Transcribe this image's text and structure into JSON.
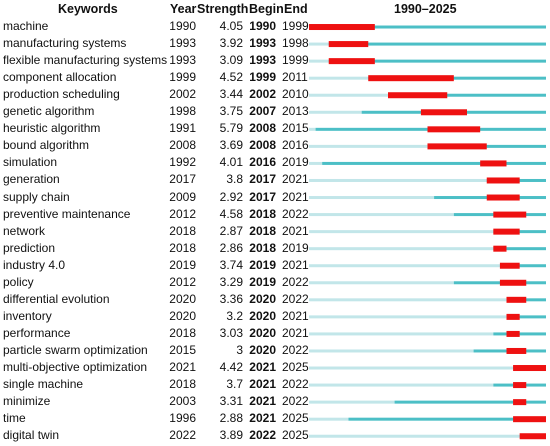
{
  "headers": {
    "keywords": "Keywords",
    "year": "Year",
    "strength": "Strength",
    "begin": "Begin",
    "end": "End",
    "range": "1990–2025"
  },
  "rows": [
    {
      "keyword": "machine",
      "year": "1990",
      "strength": "4.05",
      "begin": "1990",
      "end": "1999"
    },
    {
      "keyword": "manufacturing systems",
      "year": "1993",
      "strength": "3.92",
      "begin": "1993",
      "end": "1998"
    },
    {
      "keyword": "flexible manufacturing systems",
      "year": "1993",
      "strength": "3.09",
      "begin": "1993",
      "end": "1999"
    },
    {
      "keyword": "component allocation",
      "year": "1999",
      "strength": "4.52",
      "begin": "1999",
      "end": "2011"
    },
    {
      "keyword": "production scheduling",
      "year": "2002",
      "strength": "3.44",
      "begin": "2002",
      "end": "2010"
    },
    {
      "keyword": "genetic algorithm",
      "year": "1998",
      "strength": "3.75",
      "begin": "2007",
      "end": "2013"
    },
    {
      "keyword": "heuristic algorithm",
      "year": "1991",
      "strength": "5.79",
      "begin": "2008",
      "end": "2015"
    },
    {
      "keyword": "bound algorithm",
      "year": "2008",
      "strength": "3.69",
      "begin": "2008",
      "end": "2016"
    },
    {
      "keyword": "simulation",
      "year": "1992",
      "strength": "4.01",
      "begin": "2016",
      "end": "2019"
    },
    {
      "keyword": "generation",
      "year": "2017",
      "strength": "3.8",
      "begin": "2017",
      "end": "2021"
    },
    {
      "keyword": "supply chain",
      "year": "2009",
      "strength": "2.92",
      "begin": "2017",
      "end": "2021"
    },
    {
      "keyword": "preventive maintenance",
      "year": "2012",
      "strength": "4.58",
      "begin": "2018",
      "end": "2022"
    },
    {
      "keyword": "network",
      "year": "2018",
      "strength": "2.87",
      "begin": "2018",
      "end": "2021"
    },
    {
      "keyword": "prediction",
      "year": "2018",
      "strength": "2.86",
      "begin": "2018",
      "end": "2019"
    },
    {
      "keyword": "industry 4.0",
      "year": "2019",
      "strength": "3.74",
      "begin": "2019",
      "end": "2021"
    },
    {
      "keyword": "policy",
      "year": "2012",
      "strength": "3.29",
      "begin": "2019",
      "end": "2022"
    },
    {
      "keyword": "differential evolution",
      "year": "2020",
      "strength": "3.36",
      "begin": "2020",
      "end": "2022"
    },
    {
      "keyword": "inventory",
      "year": "2020",
      "strength": "3.2",
      "begin": "2020",
      "end": "2021"
    },
    {
      "keyword": "performance",
      "year": "2018",
      "strength": "3.03",
      "begin": "2020",
      "end": "2021"
    },
    {
      "keyword": "particle swarm optimization",
      "year": "2015",
      "strength": "3",
      "begin": "2020",
      "end": "2022"
    },
    {
      "keyword": "multi-objective optimization",
      "year": "2021",
      "strength": "4.42",
      "begin": "2021",
      "end": "2025"
    },
    {
      "keyword": "single machine",
      "year": "2018",
      "strength": "3.7",
      "begin": "2021",
      "end": "2022"
    },
    {
      "keyword": "minimize",
      "year": "2003",
      "strength": "3.31",
      "begin": "2021",
      "end": "2022"
    },
    {
      "keyword": "time",
      "year": "1996",
      "strength": "2.88",
      "begin": "2021",
      "end": "2025"
    },
    {
      "keyword": "digital twin",
      "year": "2022",
      "strength": "3.89",
      "begin": "2022",
      "end": "2025"
    }
  ],
  "chart_data": {
    "type": "table",
    "timeline": {
      "start": 1990,
      "end": 2025
    },
    "colors": {
      "burst": "#ee1111",
      "active": "#4cbfc6",
      "inactive": "#c2e6e9"
    },
    "series": [
      {
        "keyword": "machine",
        "year": 1990,
        "strength": 4.05,
        "begin": 1990,
        "end": 1999
      },
      {
        "keyword": "manufacturing systems",
        "year": 1993,
        "strength": 3.92,
        "begin": 1993,
        "end": 1998
      },
      {
        "keyword": "flexible manufacturing systems",
        "year": 1993,
        "strength": 3.09,
        "begin": 1993,
        "end": 1999
      },
      {
        "keyword": "component allocation",
        "year": 1999,
        "strength": 4.52,
        "begin": 1999,
        "end": 2011
      },
      {
        "keyword": "production scheduling",
        "year": 2002,
        "strength": 3.44,
        "begin": 2002,
        "end": 2010
      },
      {
        "keyword": "genetic algorithm",
        "year": 1998,
        "strength": 3.75,
        "begin": 2007,
        "end": 2013
      },
      {
        "keyword": "heuristic algorithm",
        "year": 1991,
        "strength": 5.79,
        "begin": 2008,
        "end": 2015
      },
      {
        "keyword": "bound algorithm",
        "year": 2008,
        "strength": 3.69,
        "begin": 2008,
        "end": 2016
      },
      {
        "keyword": "simulation",
        "year": 1992,
        "strength": 4.01,
        "begin": 2016,
        "end": 2019
      },
      {
        "keyword": "generation",
        "year": 2017,
        "strength": 3.8,
        "begin": 2017,
        "end": 2021
      },
      {
        "keyword": "supply chain",
        "year": 2009,
        "strength": 2.92,
        "begin": 2017,
        "end": 2021
      },
      {
        "keyword": "preventive maintenance",
        "year": 2012,
        "strength": 4.58,
        "begin": 2018,
        "end": 2022
      },
      {
        "keyword": "network",
        "year": 2018,
        "strength": 2.87,
        "begin": 2018,
        "end": 2021
      },
      {
        "keyword": "prediction",
        "year": 2018,
        "strength": 2.86,
        "begin": 2018,
        "end": 2019
      },
      {
        "keyword": "industry 4.0",
        "year": 2019,
        "strength": 3.74,
        "begin": 2019,
        "end": 2021
      },
      {
        "keyword": "policy",
        "year": 2012,
        "strength": 3.29,
        "begin": 2019,
        "end": 2022
      },
      {
        "keyword": "differential evolution",
        "year": 2020,
        "strength": 3.36,
        "begin": 2020,
        "end": 2022
      },
      {
        "keyword": "inventory",
        "year": 2020,
        "strength": 3.2,
        "begin": 2020,
        "end": 2021
      },
      {
        "keyword": "performance",
        "year": 2018,
        "strength": 3.03,
        "begin": 2020,
        "end": 2021
      },
      {
        "keyword": "particle swarm optimization",
        "year": 2015,
        "strength": 3,
        "begin": 2020,
        "end": 2022
      },
      {
        "keyword": "multi-objective optimization",
        "year": 2021,
        "strength": 4.42,
        "begin": 2021,
        "end": 2025
      },
      {
        "keyword": "single machine",
        "year": 2018,
        "strength": 3.7,
        "begin": 2021,
        "end": 2022
      },
      {
        "keyword": "minimize",
        "year": 2003,
        "strength": 3.31,
        "begin": 2021,
        "end": 2022
      },
      {
        "keyword": "time",
        "year": 1996,
        "strength": 2.88,
        "begin": 2021,
        "end": 2025
      },
      {
        "keyword": "digital twin",
        "year": 2022,
        "strength": 3.89,
        "begin": 2022,
        "end": 2025
      }
    ]
  }
}
